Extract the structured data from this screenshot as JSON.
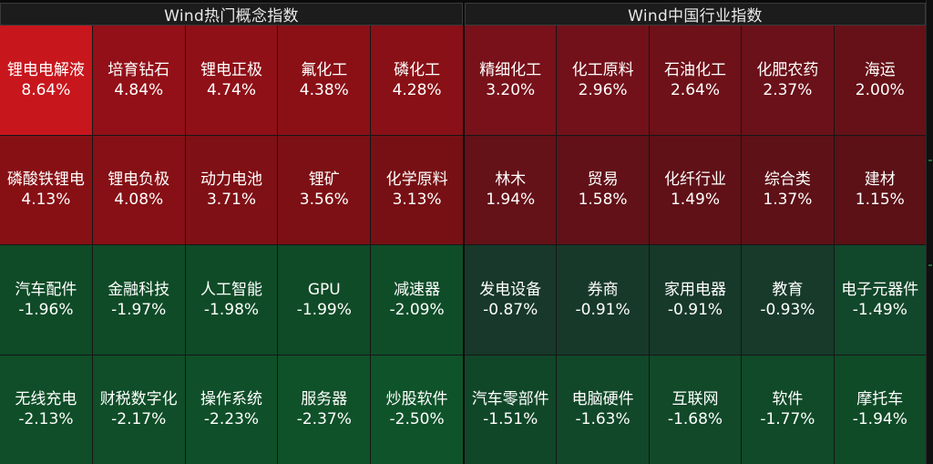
{
  "panels": [
    {
      "title": "Wind热门概念指数",
      "tiles": [
        {
          "name": "锂电电解液",
          "change": "8.64%",
          "color": "#c8161d"
        },
        {
          "name": "培育钻石",
          "change": "4.84%",
          "color": "#931018"
        },
        {
          "name": "锂电正极",
          "change": "4.74%",
          "color": "#8f1017"
        },
        {
          "name": "氟化工",
          "change": "4.38%",
          "color": "#8a1016"
        },
        {
          "name": "磷化工",
          "change": "4.28%",
          "color": "#891016"
        },
        {
          "name": "磷酸铁锂电",
          "change": "4.13%",
          "color": "#871015"
        },
        {
          "name": "锂电负极",
          "change": "4.08%",
          "color": "#861015"
        },
        {
          "name": "动力电池",
          "change": "3.71%",
          "color": "#7f1015"
        },
        {
          "name": "锂矿",
          "change": "3.56%",
          "color": "#7d1014"
        },
        {
          "name": "化学原料",
          "change": "3.13%",
          "color": "#771014"
        },
        {
          "name": "汽车配件",
          "change": "-1.96%",
          "color": "#0f4b27"
        },
        {
          "name": "金融科技",
          "change": "-1.97%",
          "color": "#0f4b27"
        },
        {
          "name": "人工智能",
          "change": "-1.98%",
          "color": "#0f4b27"
        },
        {
          "name": "GPU",
          "change": "-1.99%",
          "color": "#0f4b27"
        },
        {
          "name": "减速器",
          "change": "-2.09%",
          "color": "#0f4d28"
        },
        {
          "name": "无线充电",
          "change": "-2.13%",
          "color": "#0f4e28"
        },
        {
          "name": "财税数字化",
          "change": "-2.17%",
          "color": "#0f4e28"
        },
        {
          "name": "操作系统",
          "change": "-2.23%",
          "color": "#0f4f29"
        },
        {
          "name": "服务器",
          "change": "-2.37%",
          "color": "#0f5129"
        },
        {
          "name": "炒股软件",
          "change": "-2.50%",
          "color": "#0f532a"
        }
      ]
    },
    {
      "title": "Wind中国行业指数",
      "tiles": [
        {
          "name": "精细化工",
          "change": "3.20%",
          "color": "#78111a"
        },
        {
          "name": "化工原料",
          "change": "2.96%",
          "color": "#73111a"
        },
        {
          "name": "石油化工",
          "change": "2.64%",
          "color": "#6e1119"
        },
        {
          "name": "化肥农药",
          "change": "2.37%",
          "color": "#6b1119"
        },
        {
          "name": "海运",
          "change": "2.00%",
          "color": "#661118"
        },
        {
          "name": "林木",
          "change": "1.94%",
          "color": "#651118"
        },
        {
          "name": "贸易",
          "change": "1.58%",
          "color": "#611117"
        },
        {
          "name": "化纤行业",
          "change": "1.49%",
          "color": "#601117"
        },
        {
          "name": "综合类",
          "change": "1.37%",
          "color": "#5e1117"
        },
        {
          "name": "建材",
          "change": "1.15%",
          "color": "#5b1116"
        },
        {
          "name": "发电设备",
          "change": "-0.87%",
          "color": "#17382a"
        },
        {
          "name": "券商",
          "change": "-0.91%",
          "color": "#17392a"
        },
        {
          "name": "家用电器",
          "change": "-0.91%",
          "color": "#17392a"
        },
        {
          "name": "教育",
          "change": "-0.93%",
          "color": "#173a2a"
        },
        {
          "name": "电子元器件",
          "change": "-1.49%",
          "color": "#11472a"
        },
        {
          "name": "汽车零部件",
          "change": "-1.51%",
          "color": "#114729"
        },
        {
          "name": "电脑硬件",
          "change": "-1.63%",
          "color": "#114829"
        },
        {
          "name": "互联网",
          "change": "-1.68%",
          "color": "#114929"
        },
        {
          "name": "软件",
          "change": "-1.77%",
          "color": "#104a28"
        },
        {
          "name": "摩托车",
          "change": "-1.94%",
          "color": "#0f4b27"
        }
      ]
    }
  ]
}
